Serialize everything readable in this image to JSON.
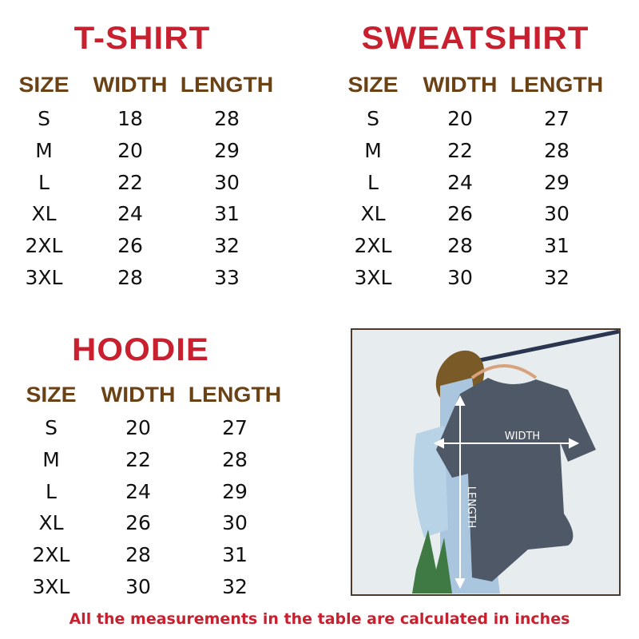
{
  "tables": [
    {
      "key": "tshirt",
      "title": "T-SHIRT",
      "headers": [
        "SIZE",
        "WIDTH",
        "LENGTH"
      ],
      "rows": [
        [
          "S",
          "18",
          "28"
        ],
        [
          "M",
          "20",
          "29"
        ],
        [
          "L",
          "22",
          "30"
        ],
        [
          "XL",
          "24",
          "31"
        ],
        [
          "2XL",
          "26",
          "32"
        ],
        [
          "3XL",
          "28",
          "33"
        ]
      ]
    },
    {
      "key": "sweatshirt",
      "title": "SWEATSHIRT",
      "headers": [
        "SIZE",
        "WIDTH",
        "LENGTH"
      ],
      "rows": [
        [
          "S",
          "20",
          "27"
        ],
        [
          "M",
          "22",
          "28"
        ],
        [
          "L",
          "24",
          "29"
        ],
        [
          "XL",
          "26",
          "30"
        ],
        [
          "2XL",
          "28",
          "31"
        ],
        [
          "3XL",
          "30",
          "32"
        ]
      ]
    },
    {
      "key": "hoodie",
      "title": "HOODIE",
      "headers": [
        "SIZE",
        "WIDTH",
        "LENGTH"
      ],
      "rows": [
        [
          "S",
          "20",
          "27"
        ],
        [
          "M",
          "22",
          "28"
        ],
        [
          "L",
          "24",
          "29"
        ],
        [
          "XL",
          "26",
          "30"
        ],
        [
          "2XL",
          "28",
          "31"
        ],
        [
          "3XL",
          "30",
          "32"
        ]
      ]
    }
  ],
  "photo": {
    "width_label": "WIDTH",
    "length_label": "LENGTH"
  },
  "footer": "All the measurements in the table are calculated in inches",
  "colors": {
    "title": "#c8202f",
    "header": "#6b4216",
    "text": "#111111",
    "frame": "#4a3b2c"
  }
}
